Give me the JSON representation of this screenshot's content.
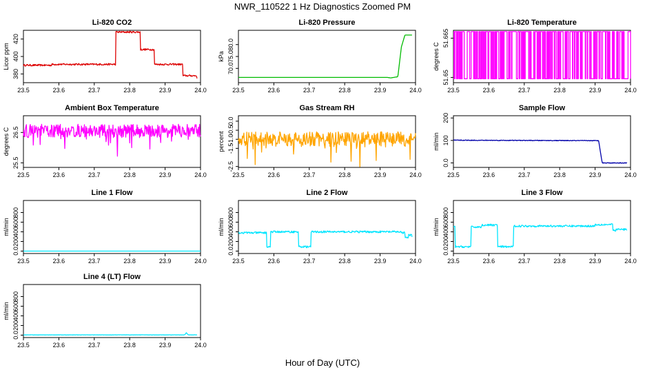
{
  "figure": {
    "title": "NWR_110522  1 Hz Diagnostics Zoomed PM",
    "footer_xlabel": "Hour of Day (UTC)"
  },
  "chart_data": [
    {
      "type": "line",
      "title": "Li-820 CO2",
      "ylabel": "Licor ppm",
      "color": "#dd0000",
      "xlim": [
        23.5,
        24.0
      ],
      "ylim": [
        370,
        430
      ],
      "xticks": [
        23.5,
        23.6,
        23.7,
        23.8,
        23.9,
        24.0
      ],
      "yticks": [
        380,
        400,
        420
      ],
      "series": [
        {
          "style": "step",
          "noise": 1,
          "x": [
            23.5,
            23.58,
            23.75,
            23.76,
            23.79,
            23.83,
            23.84,
            23.87,
            23.88,
            23.95,
            23.96,
            23.99
          ],
          "y": [
            390,
            391,
            391,
            428,
            428,
            408,
            408,
            391,
            391,
            378,
            378,
            374
          ]
        }
      ]
    },
    {
      "type": "line",
      "title": "Li-820 Pressure",
      "ylabel": "kPa",
      "color": "#00bb00",
      "xlim": [
        23.5,
        24.0
      ],
      "ylim": [
        64,
        86
      ],
      "xticks": [
        23.5,
        23.6,
        23.7,
        23.8,
        23.9,
        24.0
      ],
      "yticks": [
        70,
        75,
        80
      ],
      "series": [
        {
          "style": "line",
          "noise": 0,
          "x": [
            23.5,
            23.92,
            23.93,
            23.95,
            23.96,
            23.97,
            23.99
          ],
          "y": [
            66.2,
            66.2,
            66,
            66.5,
            79,
            84,
            84
          ]
        }
      ]
    },
    {
      "type": "line",
      "title": "Li-820 Temperature",
      "ylabel": "degrees C",
      "color": "#ff00ff",
      "xlim": [
        23.5,
        24.0
      ],
      "ylim": [
        51.648,
        51.668
      ],
      "xticks": [
        23.5,
        23.6,
        23.7,
        23.8,
        23.9,
        24.0
      ],
      "yticks": [
        51.65,
        51.665
      ],
      "series": [
        {
          "style": "binary",
          "low": 51.6495,
          "high": 51.6675,
          "x": [
            23.5,
            24.0
          ]
        }
      ]
    },
    {
      "type": "line",
      "title": "Ambient Box Temperature",
      "ylabel": "degrees C",
      "color": "#ff00ff",
      "xlim": [
        23.5,
        24.0
      ],
      "ylim": [
        25.35,
        27.05
      ],
      "xticks": [
        23.5,
        23.6,
        23.7,
        23.8,
        23.9,
        24.0
      ],
      "yticks": [
        25.5,
        26.5
      ],
      "series": [
        {
          "style": "noisy",
          "noise": 0.22,
          "spikes": 0.7,
          "x": [
            23.5,
            24.0
          ],
          "y": [
            26.55,
            26.55
          ]
        }
      ]
    },
    {
      "type": "line",
      "title": "Gas Stream RH",
      "ylabel": "percent",
      "color": "#ffa500",
      "xlim": [
        23.5,
        24.0
      ],
      "ylim": [
        -2.55,
        0.3
      ],
      "xticks": [
        23.5,
        23.6,
        23.7,
        23.8,
        23.9,
        24.0
      ],
      "yticks": [
        -2.5,
        -1.5,
        -1.0,
        -0.5,
        0.0
      ],
      "series": [
        {
          "style": "noisy",
          "noise": 0.42,
          "spikes": 1.3,
          "x": [
            23.5,
            24.0
          ],
          "y": [
            -1.0,
            -1.0
          ]
        }
      ]
    },
    {
      "type": "line",
      "title": "Sample Flow",
      "ylabel": "ml/min",
      "color": "#0000aa",
      "xlim": [
        23.5,
        24.0
      ],
      "ylim": [
        -20,
        210
      ],
      "xticks": [
        23.5,
        23.6,
        23.7,
        23.8,
        23.9,
        24.0
      ],
      "yticks": [
        0,
        100,
        200
      ],
      "series": [
        {
          "style": "line",
          "noise": 1.5,
          "x": [
            23.5,
            23.91,
            23.92,
            23.99
          ],
          "y": [
            101,
            99,
            0,
            0
          ]
        }
      ]
    },
    {
      "type": "line",
      "title": "Line 1 Flow",
      "ylabel": "ml/min",
      "color": "#00e5ff",
      "xlim": [
        23.5,
        24.0
      ],
      "ylim": [
        -50,
        1050
      ],
      "xticks": [
        23.5,
        23.6,
        23.7,
        23.8,
        23.9,
        24.0
      ],
      "yticks": [
        0,
        200,
        400,
        600,
        800
      ],
      "series": [
        {
          "style": "line",
          "noise": 0,
          "x": [
            23.5,
            24.0
          ],
          "y": [
            0,
            0
          ]
        }
      ]
    },
    {
      "type": "line",
      "title": "Line 2 Flow",
      "ylabel": "ml/min",
      "color": "#00e5ff",
      "xlim": [
        23.5,
        24.0
      ],
      "ylim": [
        -50,
        1050
      ],
      "xticks": [
        23.5,
        23.6,
        23.7,
        23.8,
        23.9,
        24.0
      ],
      "yticks": [
        0,
        200,
        400,
        600,
        800
      ],
      "series": [
        {
          "style": "step",
          "noise": 20,
          "x": [
            23.5,
            23.54,
            23.58,
            23.59,
            23.665,
            23.67,
            23.705,
            23.71,
            23.96,
            23.97,
            23.98,
            23.99
          ],
          "y": [
            380,
            380,
            90,
            400,
            400,
            90,
            400,
            400,
            380,
            280,
            330,
            300
          ]
        }
      ]
    },
    {
      "type": "line",
      "title": "Line 3 Flow",
      "ylabel": "ml/min",
      "color": "#00e5ff",
      "xlim": [
        23.5,
        24.0
      ],
      "ylim": [
        -50,
        1050
      ],
      "xticks": [
        23.5,
        23.6,
        23.7,
        23.8,
        23.9,
        24.0
      ],
      "yticks": [
        0,
        200,
        400,
        600,
        800
      ],
      "series": [
        {
          "style": "step",
          "noise": 20,
          "x": [
            23.5,
            23.505,
            23.54,
            23.55,
            23.58,
            23.625,
            23.665,
            23.67,
            23.9,
            23.92,
            23.95,
            23.96,
            23.99
          ],
          "y": [
            500,
            90,
            90,
            500,
            540,
            90,
            90,
            520,
            550,
            550,
            430,
            450,
            430
          ]
        }
      ]
    },
    {
      "type": "line",
      "title": "Line 4 (LT) Flow",
      "ylabel": "ml/min",
      "color": "#00e5ff",
      "xlim": [
        23.5,
        24.0
      ],
      "ylim": [
        -50,
        1050
      ],
      "xticks": [
        23.5,
        23.6,
        23.7,
        23.8,
        23.9,
        24.0
      ],
      "yticks": [
        0,
        200,
        400,
        600,
        800
      ],
      "series": [
        {
          "style": "line",
          "noise": 3,
          "x": [
            23.5,
            23.955,
            23.96,
            23.965,
            23.99
          ],
          "y": [
            5,
            5,
            50,
            5,
            5
          ]
        }
      ]
    }
  ]
}
